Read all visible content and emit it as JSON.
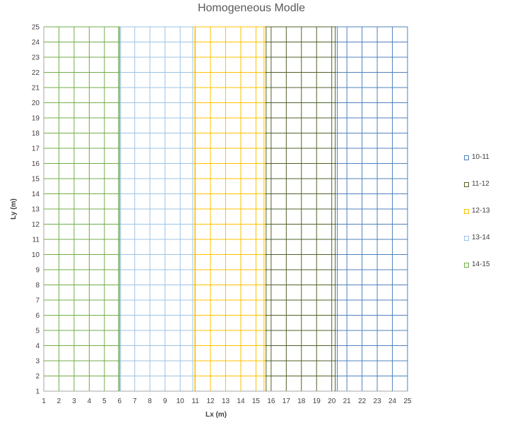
{
  "chart_data": {
    "type": "contour",
    "title": "Homogeneous Modle",
    "xlabel": "Lx (m)",
    "ylabel": "Ly (m)",
    "xlim": [
      1,
      25
    ],
    "ylim": [
      1,
      25
    ],
    "x_ticks": [
      1,
      2,
      3,
      4,
      5,
      6,
      7,
      8,
      9,
      10,
      11,
      12,
      13,
      14,
      15,
      16,
      17,
      18,
      19,
      20,
      21,
      22,
      23,
      24,
      25
    ],
    "y_ticks": [
      1,
      2,
      3,
      4,
      5,
      6,
      7,
      8,
      9,
      10,
      11,
      12,
      13,
      14,
      15,
      16,
      17,
      18,
      19,
      20,
      21,
      22,
      23,
      24,
      25
    ],
    "grid": true,
    "legend_position": "right",
    "series": [
      {
        "name": "10-11",
        "color": "#4f81bd",
        "x_range": [
          20.3,
          25
        ]
      },
      {
        "name": "11-12",
        "color": "#4f6228",
        "x_range": [
          15.6,
          20.3
        ]
      },
      {
        "name": "12-13",
        "color": "#ffc000",
        "x_range": [
          10.9,
          15.6
        ]
      },
      {
        "name": "13-14",
        "color": "#9dc3e6",
        "x_range": [
          6.0,
          10.9
        ]
      },
      {
        "name": "14-15",
        "color": "#70ad47",
        "x_range": [
          1,
          6.0
        ]
      }
    ],
    "contour_lines": [
      6.0,
      10.9,
      15.6,
      20.3
    ]
  }
}
